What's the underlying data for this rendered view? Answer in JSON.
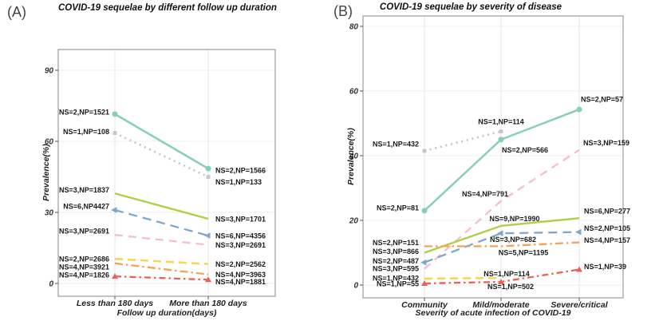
{
  "figure": {
    "background": "#ffffff"
  },
  "chart_data": [
    {
      "type": "line",
      "panel_tag": "(A)",
      "title": "COVID-19 sequelae by different follow up duration",
      "xlabel": "Follow up duration(days)",
      "ylabel": "Prevalence(%)",
      "categories": [
        "Less than 180 days",
        "More than 180 days"
      ],
      "yticks": [
        0,
        30,
        60,
        90
      ],
      "ylim": [
        0,
        99
      ],
      "grid": true,
      "legend_position": "none",
      "series": [
        {
          "name": "teal-solid",
          "color": "#87CEBB",
          "style": "solid",
          "marker": "circle",
          "width": 2.5,
          "points": [
            {
              "v": 71.5,
              "label": "NS=2,NP=1521",
              "side": "left",
              "dy": -3
            },
            {
              "v": 48.5,
              "label": "NS=2,NP=1566",
              "side": "right",
              "dy": 2
            }
          ]
        },
        {
          "name": "gray-dotted",
          "color": "#C6C3CE",
          "style": "dotted",
          "dash": "2 4.8",
          "width": 2.6,
          "marker": "square",
          "points": [
            {
              "v": 63.5,
              "label": "NS=1,NP=108",
              "side": "left",
              "dy": -2
            },
            {
              "v": 45,
              "label": "NS=1,NP=133",
              "side": "right",
              "dy": 6
            }
          ]
        },
        {
          "name": "green-solid",
          "color": "#AFD045",
          "style": "solid",
          "marker": "none",
          "width": 2.4,
          "points": [
            {
              "v": 38,
              "label": "NS=3,NP=1837",
              "side": "left",
              "dy": -5
            },
            {
              "v": 27.3,
              "label": "NS=3,NP=1701",
              "side": "right"
            }
          ]
        },
        {
          "name": "blue-dashed",
          "color": "#7FA7CD",
          "style": "dashed",
          "dash": "11 7",
          "width": 2.3,
          "marker": "arrow",
          "points": [
            {
              "v": 31,
              "label": "NS=6,NP4427",
              "side": "left",
              "dy": -5
            },
            {
              "v": 20.2,
              "label": "NS=6,NP=4356",
              "side": "right"
            }
          ]
        },
        {
          "name": "pink-dashed",
          "color": "#F5BECD",
          "style": "dashed",
          "dash": "10 7",
          "width": 2.3,
          "marker": "none",
          "points": [
            {
              "v": 20.5,
              "label": "NS=3,NP=2691",
              "side": "left",
              "dy": -5
            },
            {
              "v": 16.3,
              "label": "NS=3,NP=2691",
              "side": "right"
            }
          ]
        },
        {
          "name": "yellow-dashed",
          "color": "#F5D75A",
          "style": "dashed",
          "dash": "10 6",
          "width": 2.6,
          "marker": "none",
          "points": [
            {
              "v": 10.4,
              "label": "NS=2,NP=2686",
              "side": "left"
            },
            {
              "v": 8.2,
              "label": "NS=2,NP=2562",
              "side": "right"
            }
          ]
        },
        {
          "name": "orange-dashdot",
          "color": "#F4A355",
          "style": "dashdot",
          "dash": "10 4 2.5 4",
          "width": 2.3,
          "marker": "none",
          "points": [
            {
              "v": 8.5,
              "label": "NS=4,NP=3921",
              "side": "left",
              "dy": 4
            },
            {
              "v": 3.8,
              "label": "NS=4,NP=3963",
              "side": "right"
            }
          ]
        },
        {
          "name": "red-dashdot",
          "color": "#EB6155",
          "style": "dashdot",
          "dash": "8 4 2.5 4",
          "width": 2.3,
          "marker": "triangle",
          "points": [
            {
              "v": 3,
              "label": "NS=4,NP=1826",
              "side": "left",
              "dy": -2
            },
            {
              "v": 1.6,
              "label": "NS=4,NP=1881",
              "side": "right",
              "dy": 2
            }
          ]
        }
      ]
    },
    {
      "type": "line",
      "panel_tag": "(B)",
      "title": "COVID-19 sequelae by severity of disease",
      "xlabel": "Severity of acute infection of COVID-19",
      "ylabel": "Prevalence(%)",
      "categories": [
        "Community",
        "Mild/moderate",
        "Severe/critical"
      ],
      "yticks": [
        0,
        20,
        40,
        60,
        80
      ],
      "ylim": [
        0,
        83
      ],
      "grid": true,
      "legend_position": "none",
      "series": [
        {
          "name": "teal-solid",
          "color": "#87CEBB",
          "style": "solid",
          "marker": "circle",
          "width": 2.5,
          "points": [
            {
              "v": 23,
              "label": "NS=2,NP=81",
              "side": "left",
              "dy": -4
            },
            {
              "v": 45,
              "label": "NS=2,NP=566",
              "side": "below",
              "dx": 30,
              "dy": 3
            },
            {
              "v": 54.3,
              "label": "NS=2,NP=57",
              "side": "right",
              "dx": -7,
              "dy": -13
            }
          ]
        },
        {
          "name": "gray-dotted",
          "color": "#C6C3CE",
          "style": "dotted",
          "dash": "2 4.8",
          "width": 2.6,
          "marker": "square",
          "points": [
            {
              "v": 41.5,
              "label": "NS=1,NP=432",
              "side": "left",
              "dy": -9
            },
            {
              "v": 47.5,
              "label": "NS=1,NP=114",
              "side": "above",
              "dy": -3
            },
            {
              "v": null
            }
          ]
        },
        {
          "name": "pink-dashed",
          "color": "#F5BECD",
          "style": "dashed",
          "dash": "10 7",
          "width": 2.3,
          "marker": "none",
          "points": [
            {
              "v": 5,
              "label": "NS=3,NP=595",
              "side": "left",
              "dy": -1
            },
            {
              "v": 26,
              "label": "NS=4,NP=791",
              "side": "left",
              "dx": 16,
              "dy": -9
            },
            {
              "v": 41.8,
              "label": "NS=3,NP=159",
              "side": "right",
              "dx": -4,
              "dy": -9
            }
          ]
        },
        {
          "name": "green-solid",
          "color": "#AFD045",
          "style": "solid",
          "marker": "none",
          "width": 2.4,
          "points": [
            {
              "v": 10,
              "label": "NS=3,NP=866",
              "side": "left",
              "dy": -2
            },
            {
              "v": 18.3,
              "label": "NS=9,NP=1990",
              "side": "above",
              "dx": 17
            },
            {
              "v": 20.7,
              "label": "NS=6,NP=277",
              "side": "right",
              "dx": -3,
              "dy": -9
            }
          ]
        },
        {
          "name": "blue-dashed",
          "color": "#7FA7CD",
          "style": "dashed",
          "dash": "11 7",
          "width": 2.3,
          "marker": "arrow",
          "points": [
            {
              "v": 7,
              "label": "NS=2,NP=487",
              "side": "left",
              "dy": -2
            },
            {
              "v": 16,
              "label": "NS=3,NP=682",
              "side": "below",
              "dx": 15,
              "dy": -2
            },
            {
              "v": 16.4,
              "label": "NS=2,NP=105",
              "side": "right",
              "dx": -3,
              "dy": -5
            }
          ]
        },
        {
          "name": "orange-dashdot",
          "color": "#F4A355",
          "style": "dashdot",
          "dash": "10 4 2.5 4",
          "width": 2.3,
          "marker": "none",
          "points": [
            {
              "v": 12,
              "label": "NS=2,NP=151",
              "side": "left",
              "dy": -5
            },
            {
              "v": 12,
              "label": "NS=5,NP=1195",
              "side": "below",
              "dx": 28,
              "dy": -2
            },
            {
              "v": 13.2,
              "label": "NS=4,NP=157",
              "side": "right",
              "dx": -3,
              "dy": -3
            }
          ]
        },
        {
          "name": "yellow-dashed",
          "color": "#F5D75A",
          "style": "dashed",
          "dash": "10 6",
          "width": 2.6,
          "marker": "none",
          "points": [
            {
              "v": 2,
              "label": "NS=1,NP=432",
              "side": "left",
              "dy": -1
            },
            {
              "v": 2.2,
              "label": "NS=1,NP=114",
              "side": "above",
              "dx": 7,
              "dy": 4
            },
            {
              "v": null
            }
          ]
        },
        {
          "name": "red-dashdot",
          "color": "#EB6155",
          "style": "dashdot",
          "dash": "8 4 2.5 4",
          "width": 2.3,
          "marker": "triangle",
          "points": [
            {
              "v": 0.5,
              "label": "NS=1,NP=55",
              "side": "left"
            },
            {
              "v": 1,
              "label": "NS=1,NP=502",
              "side": "below",
              "dx": 12,
              "dy": -4
            },
            {
              "v": 4.8,
              "label": "NS=1,NP=39",
              "side": "right",
              "dx": -3,
              "dy": -4
            }
          ]
        }
      ]
    }
  ]
}
